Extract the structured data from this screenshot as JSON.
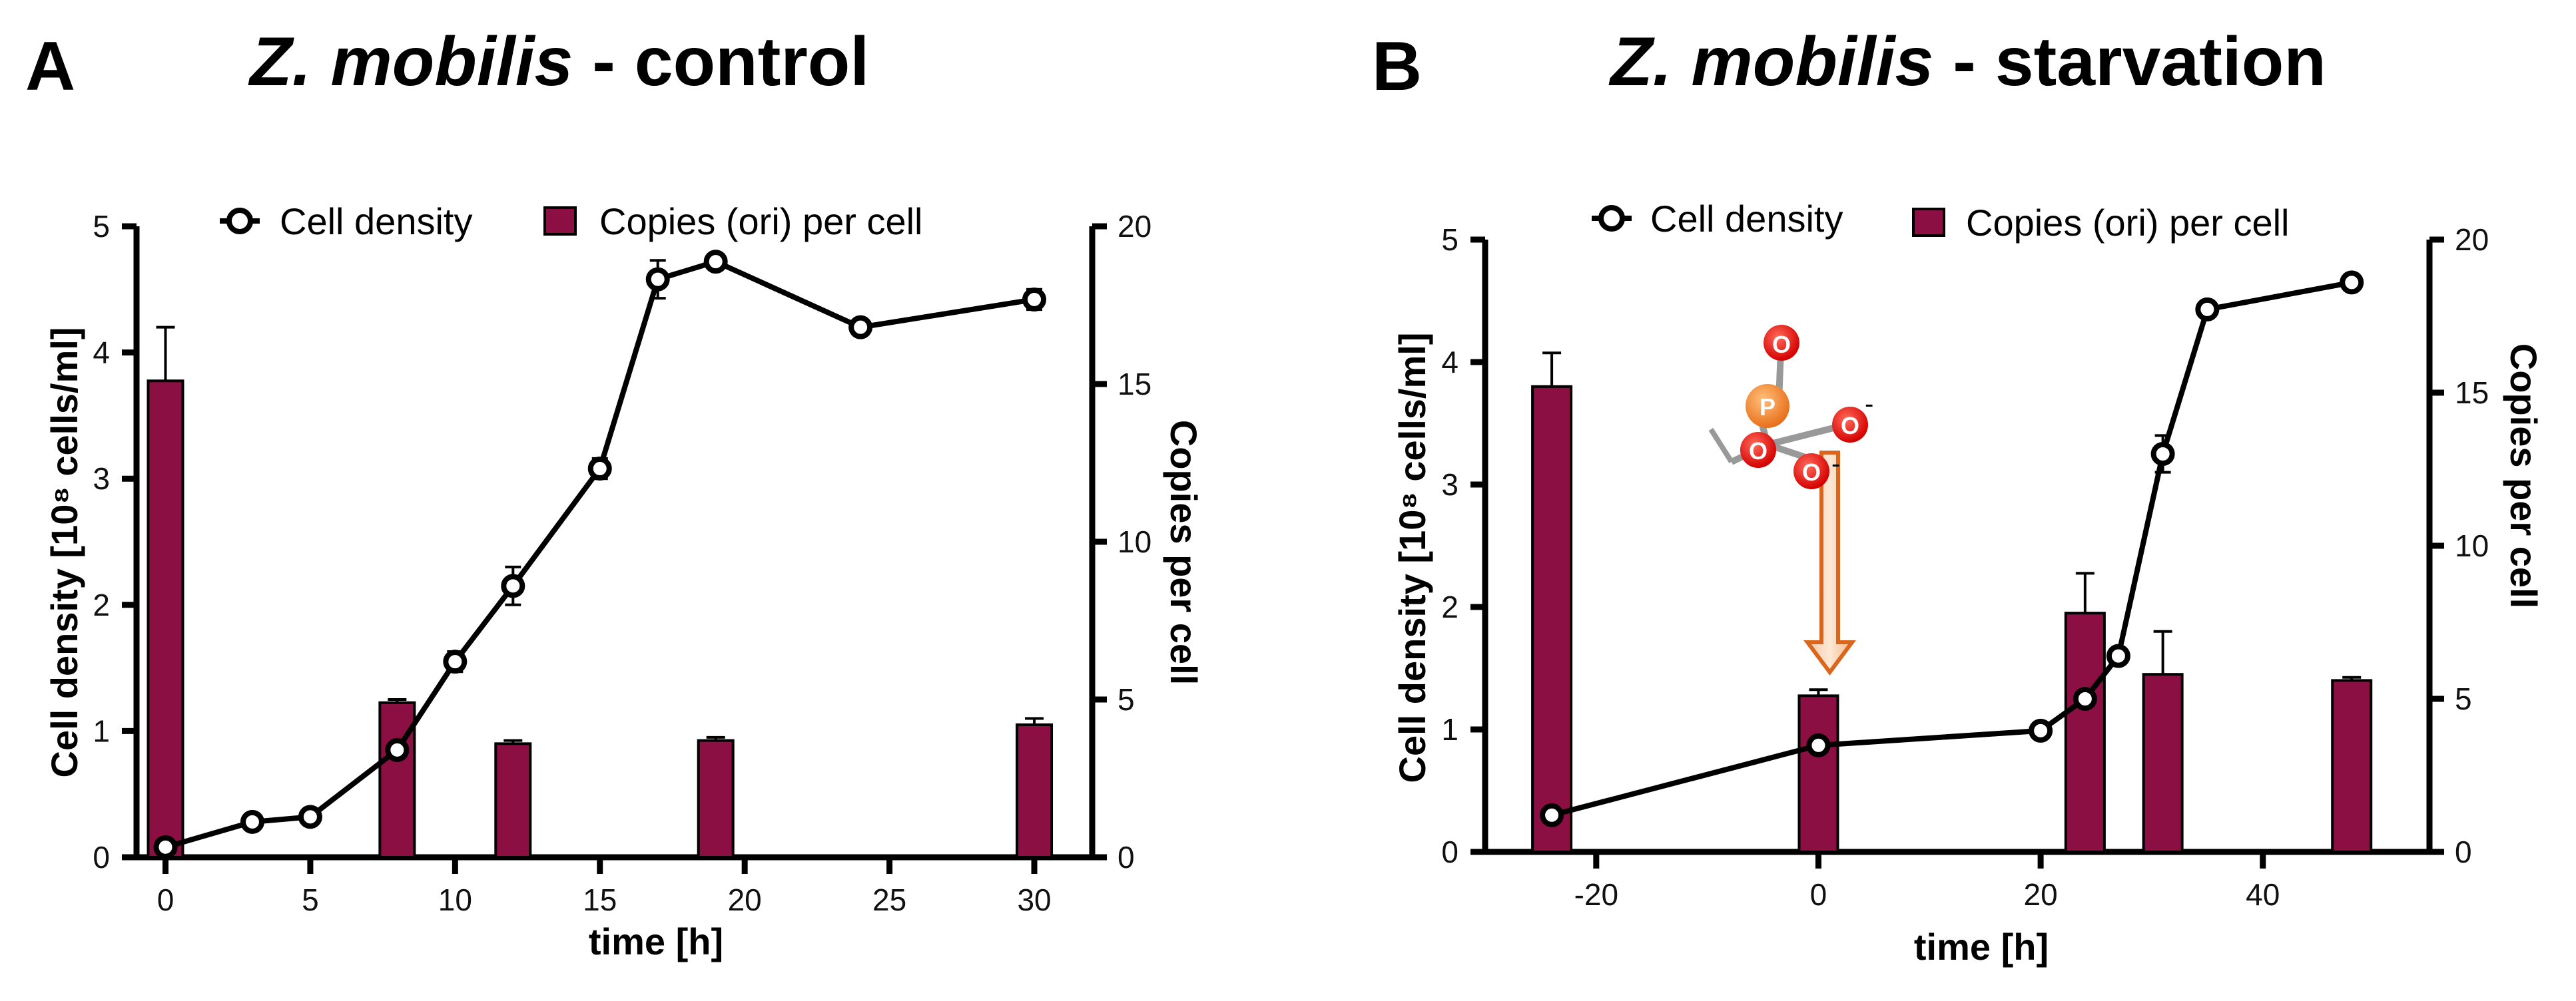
{
  "chart_data": [
    {
      "panel": "A",
      "type": "bar+line",
      "title_italic": "Z. mobilis",
      "title_rest": " - control",
      "xlabel": "time [h]",
      "ylabel_left": "Cell density [10⁸ cells/ml]",
      "ylabel_right": "Copies per cell",
      "xlim": [
        -1,
        32
      ],
      "xticks": [
        "0",
        "5",
        "10",
        "15",
        "20",
        "25",
        "30"
      ],
      "ylim_left": [
        0,
        5
      ],
      "yticks_left": [
        "0",
        "1",
        "2",
        "3",
        "4",
        "5"
      ],
      "ylim_right": [
        0,
        20
      ],
      "yticks_right": [
        "0",
        "5",
        "10",
        "15",
        "20"
      ],
      "legend": {
        "line": "Cell density",
        "bar": "Copies  (ori) per cell"
      },
      "bar_color": "#8c0f43",
      "bars": [
        {
          "x": 0,
          "value": 15.1,
          "err": 1.7
        },
        {
          "x": 8,
          "value": 4.9,
          "err": 0.1
        },
        {
          "x": 12,
          "value": 3.6,
          "err": 0.1
        },
        {
          "x": 19,
          "value": 3.7,
          "err": 0.1
        },
        {
          "x": 30,
          "value": 4.2,
          "err": 0.2
        }
      ],
      "line": [
        {
          "x": 0,
          "y": 0.08,
          "err": 0.02
        },
        {
          "x": 3,
          "y": 0.28,
          "err": 0.02
        },
        {
          "x": 5,
          "y": 0.32,
          "err": 0.02
        },
        {
          "x": 8,
          "y": 0.85,
          "err": 0.05
        },
        {
          "x": 10,
          "y": 1.55,
          "err": 0.08
        },
        {
          "x": 12,
          "y": 2.15,
          "err": 0.15
        },
        {
          "x": 15,
          "y": 3.08,
          "err": 0.08
        },
        {
          "x": 17,
          "y": 4.58,
          "err": 0.15
        },
        {
          "x": 19,
          "y": 4.72,
          "err": 0.03
        },
        {
          "x": 24,
          "y": 4.2,
          "err": 0.05
        },
        {
          "x": 30,
          "y": 4.42,
          "err": 0.08
        }
      ]
    },
    {
      "panel": "B",
      "type": "bar+line",
      "title_italic": "Z. mobilis",
      "title_rest": " - starvation",
      "xlabel": "time [h]",
      "ylabel_left": "Cell density [10⁸ cells/ml]",
      "ylabel_right": "Copies per cell",
      "xlim": [
        -30,
        55
      ],
      "xticks": [
        "-20",
        "0",
        "20",
        "40"
      ],
      "ylim_left": [
        0,
        5
      ],
      "yticks_left": [
        "0",
        "1",
        "2",
        "3",
        "4",
        "5"
      ],
      "ylim_right": [
        0,
        20
      ],
      "yticks_right": [
        "0",
        "5",
        "10",
        "15",
        "20"
      ],
      "legend": {
        "line": "Cell density",
        "bar": "Copies  (ori) per cell"
      },
      "bar_color": "#8c0f43",
      "bars": [
        {
          "x": -24,
          "value": 15.2,
          "err": 1.1
        },
        {
          "x": 0,
          "value": 5.1,
          "err": 0.2
        },
        {
          "x": 24,
          "value": 7.8,
          "err": 1.3
        },
        {
          "x": 31,
          "value": 5.8,
          "err": 1.4
        },
        {
          "x": 48,
          "value": 5.6,
          "err": 0.1
        }
      ],
      "line": [
        {
          "x": -24,
          "y": 0.3,
          "err": 0.02
        },
        {
          "x": 0,
          "y": 0.87,
          "err": 0.03
        },
        {
          "x": 20,
          "y": 0.99,
          "err": 0.05
        },
        {
          "x": 24,
          "y": 1.25,
          "err": 0.05
        },
        {
          "x": 27,
          "y": 1.6,
          "err": 0.05
        },
        {
          "x": 31,
          "y": 3.25,
          "err": 0.15
        },
        {
          "x": 35,
          "y": 4.43,
          "err": 0.03
        },
        {
          "x": 48,
          "y": 4.65,
          "err": 0.03
        }
      ],
      "annotation": {
        "description": "phosphate molecule with arrow pointing to t = 0 h",
        "arrow_x": 0,
        "center_atom": "P",
        "ligand_atom": "O",
        "charge": "-"
      }
    }
  ]
}
